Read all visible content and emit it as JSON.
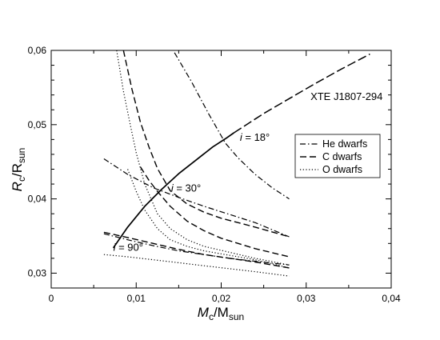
{
  "chart_data": {
    "type": "line",
    "title": "",
    "xlabel": {
      "main": "M",
      "sub1": "c",
      "sep": "/M",
      "sub2": "sun"
    },
    "ylabel": {
      "main": "R",
      "sub1": "c",
      "sep": "/R",
      "sub2": "sun"
    },
    "xlim": [
      0,
      0.04
    ],
    "ylim": [
      0.028,
      0.06
    ],
    "xticks": [
      0,
      0.01,
      0.02,
      0.03,
      0.04
    ],
    "xtick_labels": [
      "0",
      "0,01",
      "0,02",
      "0,03",
      "0,04"
    ],
    "yticks": [
      0.03,
      0.04,
      0.05,
      0.06
    ],
    "ytick_labels": [
      "0,03",
      "0,04",
      "0,05",
      "0,06"
    ],
    "grid": false,
    "legend": {
      "placement": "right-middle",
      "entries": [
        {
          "label": "He dwarfs",
          "style": "dashdot"
        },
        {
          "label": "C dwarfs",
          "style": "dashed"
        },
        {
          "label": "O dwarfs",
          "style": "dotted"
        }
      ]
    },
    "annotations": [
      {
        "text": "XTE J1807-294",
        "x": 0.0305,
        "y": 0.0533
      },
      {
        "italic": "i",
        "text": " = 18°",
        "x": 0.0222,
        "y": 0.0478
      },
      {
        "italic": "i",
        "text": " = 30°",
        "x": 0.0141,
        "y": 0.041
      },
      {
        "italic": "i",
        "text": " = 90°",
        "x": 0.0073,
        "y": 0.033
      }
    ],
    "series": [
      {
        "style": "solid",
        "x": [
          0.0073,
          0.009,
          0.011,
          0.013,
          0.015,
          0.017,
          0.019,
          0.0205,
          0.0215
        ],
        "y": [
          0.0334,
          0.0362,
          0.039,
          0.0413,
          0.0434,
          0.0452,
          0.047,
          0.0481,
          0.0489
        ]
      },
      {
        "style": "solid-upper",
        "x": [
          0.0215,
          0.025,
          0.028,
          0.031,
          0.034,
          0.0375
        ],
        "y": [
          0.0489,
          0.0515,
          0.0535,
          0.0555,
          0.0574,
          0.0595
        ]
      },
      {
        "style": "dashdot",
        "x": [
          0.0145,
          0.0165,
          0.0185,
          0.0205,
          0.022,
          0.024,
          0.026,
          0.028
        ],
        "y": [
          0.0597,
          0.0558,
          0.0515,
          0.0475,
          0.0455,
          0.0433,
          0.0415,
          0.04
        ]
      },
      {
        "style": "dashdot",
        "x": [
          0.0062,
          0.009,
          0.012,
          0.015,
          0.018,
          0.021,
          0.024,
          0.028
        ],
        "y": [
          0.0454,
          0.0433,
          0.0415,
          0.0402,
          0.039,
          0.0379,
          0.0368,
          0.0349
        ]
      },
      {
        "style": "dashdot",
        "x": [
          0.0062,
          0.009,
          0.012,
          0.015,
          0.018,
          0.021,
          0.024,
          0.028
        ],
        "y": [
          0.0353,
          0.0345,
          0.0337,
          0.033,
          0.0325,
          0.032,
          0.0316,
          0.0311
        ]
      },
      {
        "style": "dashed",
        "x": [
          0.0085,
          0.0095,
          0.0105,
          0.0115,
          0.0125,
          0.014,
          0.016,
          0.018,
          0.02,
          0.024,
          0.028
        ],
        "y": [
          0.06,
          0.0548,
          0.0503,
          0.047,
          0.0441,
          0.0411,
          0.0393,
          0.0382,
          0.0374,
          0.0362,
          0.0349
        ]
      },
      {
        "style": "dashed",
        "x": [
          0.0105,
          0.0115,
          0.0125,
          0.014,
          0.016,
          0.018,
          0.02,
          0.024,
          0.028
        ],
        "y": [
          0.0443,
          0.0425,
          0.041,
          0.039,
          0.037,
          0.0357,
          0.0347,
          0.0333,
          0.0322
        ]
      },
      {
        "style": "dashed",
        "x": [
          0.0062,
          0.009,
          0.012,
          0.015,
          0.018,
          0.021,
          0.024,
          0.028
        ],
        "y": [
          0.0355,
          0.0348,
          0.034,
          0.0332,
          0.0325,
          0.032,
          0.0315,
          0.0307
        ]
      },
      {
        "style": "dotted",
        "x": [
          0.0077,
          0.0085,
          0.0093,
          0.01,
          0.011,
          0.0125,
          0.014,
          0.016,
          0.018,
          0.021,
          0.024,
          0.028
        ],
        "y": [
          0.06,
          0.0545,
          0.05,
          0.0462,
          0.042,
          0.038,
          0.036,
          0.0345,
          0.0336,
          0.0328,
          0.032,
          0.0311
        ]
      },
      {
        "style": "dotted",
        "x": [
          0.009,
          0.01,
          0.011,
          0.0125,
          0.014,
          0.016,
          0.018,
          0.02,
          0.024,
          0.028
        ],
        "y": [
          0.044,
          0.041,
          0.0385,
          0.036,
          0.0345,
          0.0336,
          0.033,
          0.0326,
          0.0318,
          0.0307
        ]
      },
      {
        "style": "dotted",
        "x": [
          0.0062,
          0.009,
          0.012,
          0.015,
          0.018,
          0.021,
          0.024,
          0.028
        ],
        "y": [
          0.0325,
          0.0322,
          0.0318,
          0.0314,
          0.031,
          0.0306,
          0.0302,
          0.0296
        ]
      }
    ]
  }
}
